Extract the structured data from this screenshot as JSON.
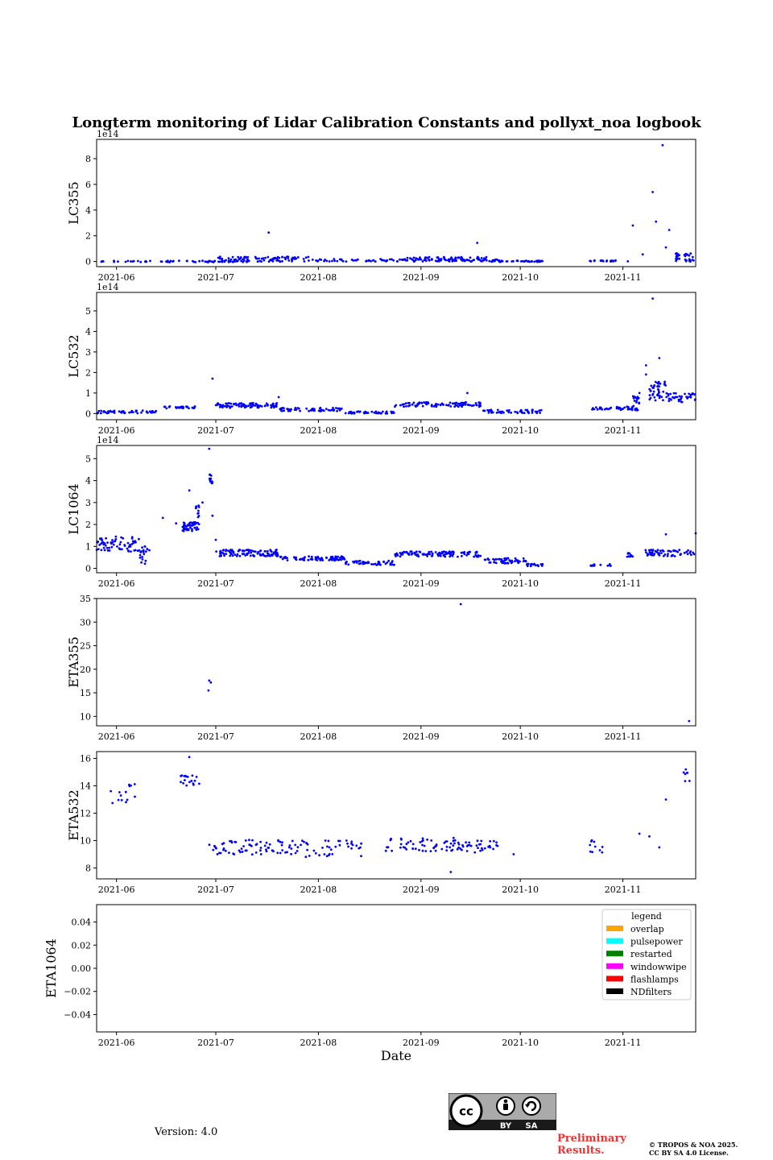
{
  "title": "Longterm monitoring of Lidar Calibration Constants and pollyxt_noa logbook",
  "version_text": "Version: 4.0",
  "preliminary_text": "Preliminary Results.",
  "copyright_line1": "© TROPOS & NOA 2025.",
  "copyright_line2": "CC BY SA 4.0 License.",
  "license_badge": {
    "left": "BY",
    "right": "SA",
    "logo": "cc"
  },
  "colors": {
    "points": "#0000ff",
    "axes": "#000000"
  },
  "chart_data": [
    {
      "type": "scatter",
      "name": "LC355",
      "ylabel": "LC355",
      "multiplier": "1e14",
      "xlabel": "",
      "xlim": [
        "2021-05-26",
        "2021-11-23"
      ],
      "xticks": [
        "2021-06",
        "2021-07",
        "2021-08",
        "2021-09",
        "2021-10",
        "2021-11"
      ],
      "ylim": [
        -0.4,
        9.5
      ],
      "yticks": [
        0,
        2,
        4,
        6,
        8
      ],
      "segments": [
        {
          "x0": 1,
          "x1": 50,
          "n": 60,
          "base": 0.0,
          "jitter": 0.06
        },
        {
          "x0": 35,
          "x1": 65,
          "n": 30,
          "base": 0.04,
          "jitter": 0.08
        },
        {
          "x0": 36,
          "x1": 66,
          "n": 60,
          "base": 0.25,
          "jitter": 0.12
        },
        {
          "x0": 66,
          "x1": 122,
          "n": 100,
          "base": 0.1,
          "jitter": 0.1
        },
        {
          "x0": 92,
          "x1": 118,
          "n": 60,
          "base": 0.2,
          "jitter": 0.15
        },
        {
          "x0": 118,
          "x1": 135,
          "n": 40,
          "base": 0.02,
          "jitter": 0.05
        },
        {
          "x0": 149,
          "x1": 162,
          "n": 20,
          "base": 0.05,
          "jitter": 0.05
        },
        {
          "x0": 175,
          "x1": 181,
          "n": 30,
          "base": 0.35,
          "jitter": 0.35
        }
      ],
      "points": [
        [
          52,
          2.25
        ],
        [
          115,
          1.45
        ],
        [
          162,
          2.8
        ],
        [
          168,
          5.4
        ],
        [
          171,
          9.05
        ],
        [
          169,
          3.1
        ],
        [
          173,
          2.45
        ],
        [
          172,
          1.1
        ],
        [
          175,
          0.6
        ],
        [
          165,
          0.55
        ]
      ]
    },
    {
      "type": "scatter",
      "name": "LC532",
      "ylabel": "LC532",
      "multiplier": "1e14",
      "xlabel": "",
      "xlim": [
        "2021-05-26",
        "2021-11-23"
      ],
      "xticks": [
        "2021-06",
        "2021-07",
        "2021-08",
        "2021-09",
        "2021-10",
        "2021-11"
      ],
      "ylim": [
        -0.3,
        5.9
      ],
      "yticks": [
        0,
        1,
        2,
        3,
        4,
        5
      ],
      "segments": [
        {
          "x0": 0,
          "x1": 18,
          "n": 50,
          "base": 0.08,
          "jitter": 0.07
        },
        {
          "x0": 20,
          "x1": 30,
          "n": 30,
          "base": 0.3,
          "jitter": 0.05
        },
        {
          "x0": 36,
          "x1": 55,
          "n": 90,
          "base": 0.4,
          "jitter": 0.12
        },
        {
          "x0": 55,
          "x1": 75,
          "n": 60,
          "base": 0.2,
          "jitter": 0.08
        },
        {
          "x0": 75,
          "x1": 90,
          "n": 50,
          "base": 0.05,
          "jitter": 0.05
        },
        {
          "x0": 90,
          "x1": 116,
          "n": 90,
          "base": 0.45,
          "jitter": 0.12
        },
        {
          "x0": 116,
          "x1": 135,
          "n": 50,
          "base": 0.1,
          "jitter": 0.08
        },
        {
          "x0": 149,
          "x1": 156,
          "n": 15,
          "base": 0.25,
          "jitter": 0.05
        },
        {
          "x0": 157,
          "x1": 162,
          "n": 20,
          "base": 0.25,
          "jitter": 0.1
        },
        {
          "x0": 162,
          "x1": 164,
          "n": 20,
          "base": 0.5,
          "jitter": 0.35
        },
        {
          "x0": 167,
          "x1": 172,
          "n": 40,
          "base": 1.1,
          "jitter": 0.5
        },
        {
          "x0": 172,
          "x1": 181,
          "n": 40,
          "base": 0.8,
          "jitter": 0.25
        }
      ],
      "points": [
        [
          35,
          1.7
        ],
        [
          55,
          0.8
        ],
        [
          112,
          1.0
        ],
        [
          168,
          5.6
        ],
        [
          170,
          2.7
        ],
        [
          166,
          2.35
        ],
        [
          166,
          1.9
        ],
        [
          164,
          1.0
        ]
      ]
    },
    {
      "type": "scatter",
      "name": "LC1064",
      "ylabel": "LC1064",
      "multiplier": "1e14",
      "xlabel": "",
      "xlim": [
        "2021-05-26",
        "2021-11-23"
      ],
      "xticks": [
        "2021-06",
        "2021-07",
        "2021-08",
        "2021-09",
        "2021-10",
        "2021-11"
      ],
      "ylim": [
        -0.2,
        5.6
      ],
      "yticks": [
        0,
        1,
        2,
        3,
        4,
        5
      ],
      "segments": [
        {
          "x0": 0,
          "x1": 13,
          "n": 70,
          "base": 1.1,
          "jitter": 0.35
        },
        {
          "x0": 13,
          "x1": 16,
          "n": 20,
          "base": 0.6,
          "jitter": 0.4
        },
        {
          "x0": 26,
          "x1": 31,
          "n": 50,
          "base": 1.9,
          "jitter": 0.2
        },
        {
          "x0": 30,
          "x1": 31,
          "n": 10,
          "base": 2.6,
          "jitter": 0.3
        },
        {
          "x0": 34,
          "x1": 35,
          "n": 12,
          "base": 4.0,
          "jitter": 0.3
        },
        {
          "x0": 36,
          "x1": 55,
          "n": 100,
          "base": 0.7,
          "jitter": 0.15
        },
        {
          "x0": 55,
          "x1": 75,
          "n": 80,
          "base": 0.45,
          "jitter": 0.1
        },
        {
          "x0": 75,
          "x1": 90,
          "n": 50,
          "base": 0.25,
          "jitter": 0.1
        },
        {
          "x0": 90,
          "x1": 116,
          "n": 110,
          "base": 0.65,
          "jitter": 0.12
        },
        {
          "x0": 116,
          "x1": 130,
          "n": 50,
          "base": 0.35,
          "jitter": 0.12
        },
        {
          "x0": 130,
          "x1": 135,
          "n": 20,
          "base": 0.15,
          "jitter": 0.06
        },
        {
          "x0": 149,
          "x1": 156,
          "n": 12,
          "base": 0.15,
          "jitter": 0.04
        },
        {
          "x0": 160,
          "x1": 162,
          "n": 10,
          "base": 0.6,
          "jitter": 0.1
        },
        {
          "x0": 165,
          "x1": 181,
          "n": 60,
          "base": 0.7,
          "jitter": 0.15
        }
      ],
      "points": [
        [
          34,
          5.45
        ],
        [
          28,
          3.55
        ],
        [
          32,
          3.0
        ],
        [
          35,
          2.4
        ],
        [
          20,
          2.3
        ],
        [
          24,
          2.05
        ],
        [
          36,
          1.3
        ],
        [
          172,
          1.55
        ],
        [
          181,
          1.6
        ]
      ]
    },
    {
      "type": "scatter",
      "name": "ETA355",
      "ylabel": "ETA355",
      "multiplier": "",
      "xlabel": "",
      "xlim": [
        "2021-05-26",
        "2021-11-23"
      ],
      "xticks": [
        "2021-06",
        "2021-07",
        "2021-08",
        "2021-09",
        "2021-10",
        "2021-11"
      ],
      "ylim": [
        8,
        35
      ],
      "yticks": [
        10,
        15,
        20,
        25,
        30,
        35
      ],
      "segments": [],
      "points": [
        [
          34,
          17.6
        ],
        [
          34.5,
          17.2
        ],
        [
          33.8,
          15.5
        ],
        [
          110,
          33.8
        ],
        [
          179,
          9.0
        ]
      ]
    },
    {
      "type": "scatter",
      "name": "ETA532",
      "ylabel": "ETA532",
      "multiplier": "",
      "xlabel": "",
      "xlim": [
        "2021-05-26",
        "2021-11-23"
      ],
      "xticks": [
        "2021-06",
        "2021-07",
        "2021-08",
        "2021-09",
        "2021-10",
        "2021-11"
      ],
      "ylim": [
        7.2,
        16.5
      ],
      "yticks": [
        8,
        10,
        12,
        14,
        16
      ],
      "segments": [
        {
          "x0": 4,
          "x1": 12,
          "n": 14,
          "base": 13.4,
          "jitter": 0.9
        },
        {
          "x0": 25,
          "x1": 31,
          "n": 18,
          "base": 14.4,
          "jitter": 0.4
        },
        {
          "x0": 34,
          "x1": 57,
          "n": 60,
          "base": 9.5,
          "jitter": 0.55
        },
        {
          "x0": 57,
          "x1": 80,
          "n": 50,
          "base": 9.4,
          "jitter": 0.6
        },
        {
          "x0": 86,
          "x1": 110,
          "n": 60,
          "base": 9.7,
          "jitter": 0.5
        },
        {
          "x0": 110,
          "x1": 122,
          "n": 30,
          "base": 9.5,
          "jitter": 0.5
        },
        {
          "x0": 149,
          "x1": 153,
          "n": 10,
          "base": 9.6,
          "jitter": 0.5
        },
        {
          "x0": 177,
          "x1": 181,
          "n": 6,
          "base": 14.6,
          "jitter": 0.4
        }
      ],
      "points": [
        [
          28,
          16.1
        ],
        [
          107,
          7.7
        ],
        [
          126,
          9.0
        ],
        [
          164,
          10.5
        ],
        [
          170,
          9.5
        ],
        [
          172,
          13.0
        ],
        [
          178,
          15.2
        ],
        [
          167,
          10.3
        ]
      ]
    },
    {
      "type": "scatter",
      "name": "ETA1064",
      "ylabel": "ETA1064",
      "multiplier": "",
      "xlabel": "Date",
      "xlim": [
        "2021-05-26",
        "2021-11-23"
      ],
      "xticks": [
        "2021-06",
        "2021-07",
        "2021-08",
        "2021-09",
        "2021-10",
        "2021-11"
      ],
      "ylim": [
        -0.055,
        0.055
      ],
      "yticks": [
        -0.04,
        -0.02,
        0.0,
        0.02,
        0.04
      ],
      "segments": [],
      "points": []
    }
  ],
  "legend": {
    "title": "legend",
    "items": [
      {
        "label": "overlap",
        "color": "#ffa500"
      },
      {
        "label": "pulsepower",
        "color": "#00ffff"
      },
      {
        "label": "restarted",
        "color": "#008000"
      },
      {
        "label": "windowwipe",
        "color": "#ff00ff"
      },
      {
        "label": "flashlamps",
        "color": "#ff0000"
      },
      {
        "label": "NDfilters",
        "color": "#000000"
      }
    ]
  }
}
